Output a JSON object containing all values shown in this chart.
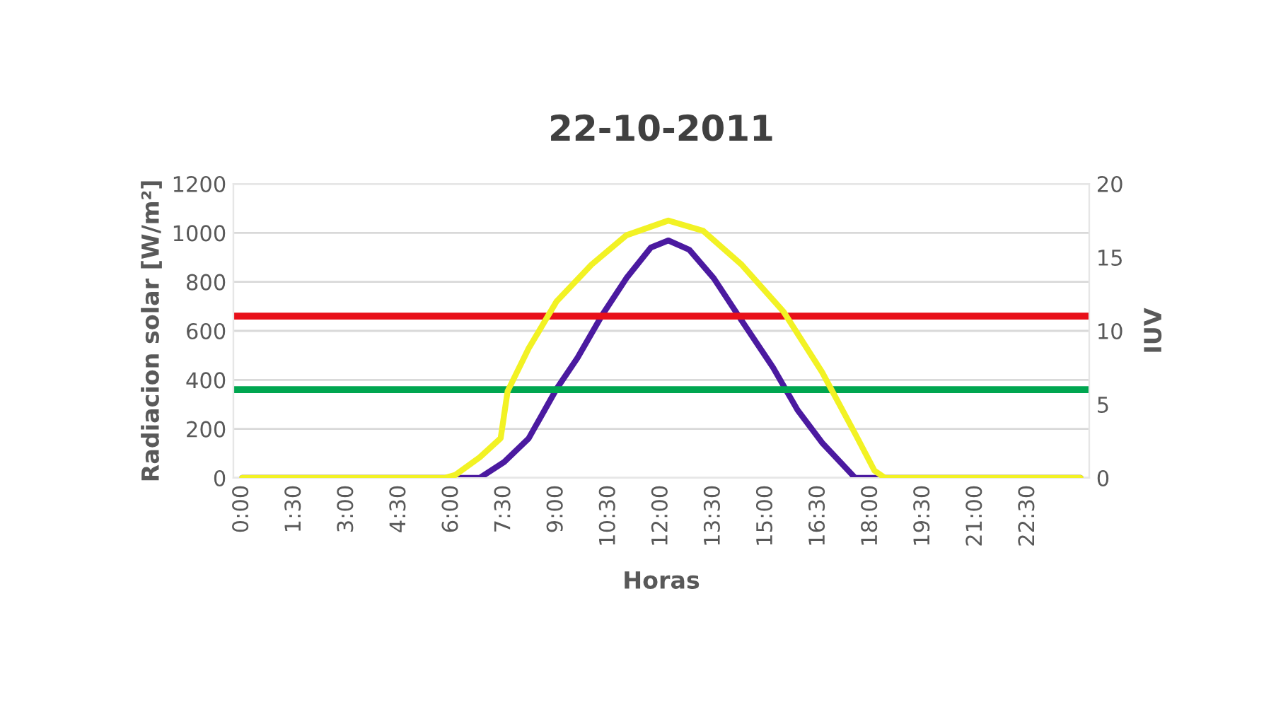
{
  "chart_data": {
    "type": "line",
    "title": "22-10-2011",
    "xlabel": "Horas",
    "ylabel": "Radiacion solar [W/m²]",
    "y2label": "IUV",
    "xlim": [
      -0.25,
      24.25
    ],
    "xticks": [
      {
        "value": 0,
        "label": "0:00"
      },
      {
        "value": 1.5,
        "label": "1:30"
      },
      {
        "value": 3,
        "label": "3:00"
      },
      {
        "value": 4.5,
        "label": "4:30"
      },
      {
        "value": 6,
        "label": "6:00"
      },
      {
        "value": 7.5,
        "label": "7:30"
      },
      {
        "value": 9,
        "label": "9:00"
      },
      {
        "value": 10.5,
        "label": "10:30"
      },
      {
        "value": 12,
        "label": "12:00"
      },
      {
        "value": 13.5,
        "label": "13:30"
      },
      {
        "value": 15,
        "label": "15:00"
      },
      {
        "value": 16.5,
        "label": "16:30"
      },
      {
        "value": 18,
        "label": "18:00"
      },
      {
        "value": 19.5,
        "label": "19:30"
      },
      {
        "value": 21,
        "label": "21:00"
      },
      {
        "value": 22.5,
        "label": "22:30"
      }
    ],
    "ylim": [
      0,
      1200
    ],
    "yticks": [
      0,
      200,
      400,
      600,
      800,
      1000,
      1200
    ],
    "y2lim": [
      0,
      20
    ],
    "y2ticks": [
      0,
      5,
      10,
      15,
      20
    ],
    "grid": "y",
    "line_style": "solid",
    "marker": "none",
    "series": [
      {
        "color": "#4b1aa0",
        "x": [
          0,
          6.8,
          7.5,
          8.2,
          9.0,
          9.6,
          10.3,
          11.0,
          11.7,
          12.2,
          12.8,
          13.5,
          14.3,
          15.2,
          15.9,
          16.6,
          17.55,
          24
        ],
        "values": [
          0,
          0,
          65,
          161,
          363,
          490,
          663,
          815,
          940,
          969,
          931,
          815,
          642,
          450,
          277,
          144,
          0,
          0
        ]
      },
      {
        "color": "#f2f224",
        "axis": "y2",
        "x": [
          0,
          5.8,
          6.1,
          6.8,
          7.4,
          7.6,
          8.2,
          9.0,
          10.0,
          11.0,
          12.2,
          13.2,
          14.3,
          15.5,
          16.6,
          17.55,
          18.1,
          18.4,
          24
        ],
        "values": [
          0,
          0,
          0.2,
          1.4,
          2.7,
          5.9,
          8.8,
          12.0,
          14.5,
          16.5,
          17.5,
          16.8,
          14.5,
          11.3,
          7.2,
          3.0,
          0.5,
          0,
          0
        ]
      }
    ],
    "ref_lines": [
      {
        "axis": "y2",
        "value": 11,
        "color": "#e8101a"
      },
      {
        "axis": "y2",
        "value": 6,
        "color": "#00a650"
      }
    ]
  }
}
